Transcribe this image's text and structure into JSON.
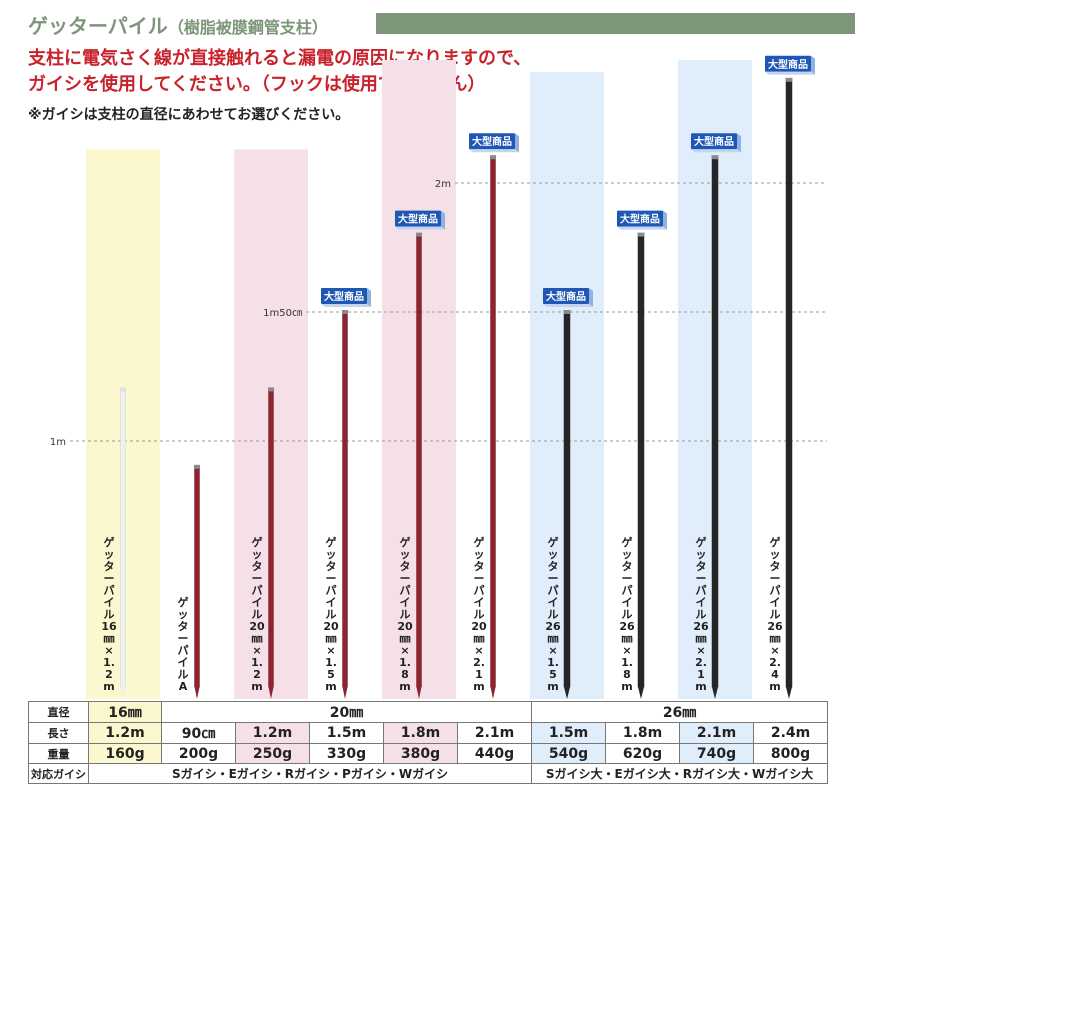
{
  "header": {
    "title": "ゲッターパイル",
    "subtitle": "（樹脂被膜鋼管支柱）",
    "warning_line1": "支柱に電気さく線が直接触れると漏電の原因になりますので、",
    "warning_line2": "ガイシを使用してください。（フックは使用できません）",
    "note": "※ガイシは支柱の直径にあわせてお選びください。"
  },
  "chart_data": {
    "type": "bar",
    "y_axis_ticks": [
      {
        "value": 1.0,
        "label": "1m"
      },
      {
        "value": 1.5,
        "label": "1m50㎝"
      },
      {
        "value": 2.0,
        "label": "2m"
      }
    ],
    "badge_label": "大型商品",
    "colors": {
      "white": "#f0f0f0",
      "red": "#8c2432",
      "black": "#262626",
      "yellow_bg": "#fbf8cf",
      "pink_bg": "#f6e0e8",
      "blue_bg": "#dfeefa"
    },
    "products": [
      {
        "name": "ゲッターパイル16㎜×1.2m",
        "length_m": 1.2,
        "color": "white",
        "highlight": "yellow",
        "badge": false
      },
      {
        "name": "ゲッターパイルA",
        "length_m": 0.9,
        "color": "red",
        "highlight": "none",
        "badge": false
      },
      {
        "name": "ゲッターパイル20㎜×1.2m",
        "length_m": 1.2,
        "color": "red",
        "highlight": "pink",
        "badge": false
      },
      {
        "name": "ゲッターパイル20㎜×1.5m",
        "length_m": 1.5,
        "color": "red",
        "highlight": "none",
        "badge": true
      },
      {
        "name": "ゲッターパイル20㎜×1.8m",
        "length_m": 1.8,
        "color": "red",
        "highlight": "pink",
        "badge": true
      },
      {
        "name": "ゲッターパイル20㎜×2.1m",
        "length_m": 2.1,
        "color": "red",
        "highlight": "none",
        "badge": true
      },
      {
        "name": "ゲッターパイル26㎜×1.5m",
        "length_m": 1.5,
        "color": "black",
        "highlight": "blue",
        "badge": true
      },
      {
        "name": "ゲッターパイル26㎜×1.8m",
        "length_m": 1.8,
        "color": "black",
        "highlight": "none",
        "badge": true
      },
      {
        "name": "ゲッターパイル26㎜×2.1m",
        "length_m": 2.1,
        "color": "black",
        "highlight": "blue",
        "badge": true
      },
      {
        "name": "ゲッターパイル26㎜×2.4m",
        "length_m": 2.4,
        "color": "black",
        "highlight": "none",
        "badge": true
      }
    ]
  },
  "table": {
    "diameter_header": "直径",
    "length_header": "長さ",
    "weight_header": "重量",
    "insulator_header": "対応ガイシ",
    "diameters": [
      "16㎜",
      "20㎜",
      "26㎜"
    ],
    "lengths": [
      "1.2m",
      "90㎝",
      "1.2m",
      "1.5m",
      "1.8m",
      "2.1m",
      "1.5m",
      "1.8m",
      "2.1m",
      "2.4m"
    ],
    "weights": [
      "160g",
      "200g",
      "250g",
      "330g",
      "380g",
      "440g",
      "540g",
      "620g",
      "740g",
      "800g"
    ],
    "insulators_20": "Sガイシ・Eガイシ・Rガイシ・Pガイシ・Wガイシ",
    "insulators_26": "Sガイシ大・Eガイシ大・Rガイシ大・Wガイシ大"
  }
}
